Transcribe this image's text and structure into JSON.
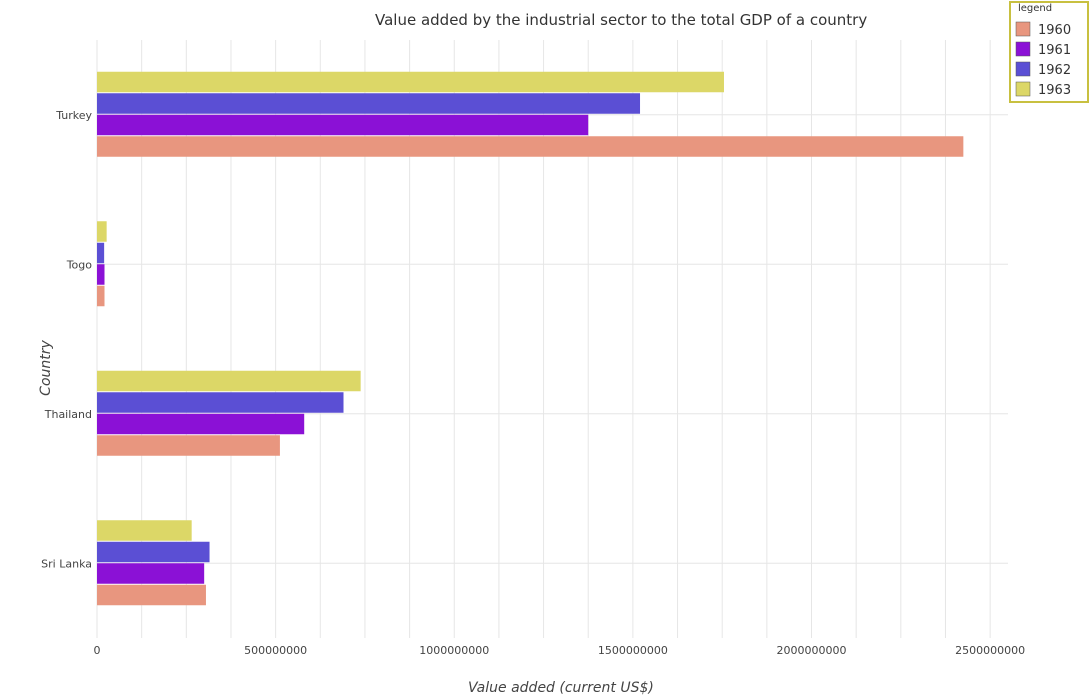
{
  "chart_data": {
    "type": "bar",
    "orientation": "horizontal",
    "title": "Value added by the industrial sector to the total GDP of a country",
    "xlabel": "Value added (current US$)",
    "ylabel": "Country",
    "categories": [
      "Sri Lanka",
      "Thailand",
      "Togo",
      "Turkey"
    ],
    "xlim": [
      0,
      2550000000
    ],
    "xticks": [
      0,
      500000000,
      1000000000,
      1500000000,
      2000000000,
      2500000000
    ],
    "xtick_labels": [
      "0",
      "500000000",
      "1000000000",
      "1500000000",
      "2000000000",
      "2500000000"
    ],
    "grid": true,
    "legend_title": "legend",
    "legend_position": "top-right",
    "series": [
      {
        "name": "1960",
        "color": "#e8967f",
        "values": [
          305000000,
          512000000,
          21000000,
          2425000000
        ]
      },
      {
        "name": "1961",
        "color": "#8b11d6",
        "values": [
          300000000,
          580000000,
          21000000,
          1375000000
        ]
      },
      {
        "name": "1962",
        "color": "#5b4fd4",
        "values": [
          315000000,
          690000000,
          20000000,
          1520000000
        ]
      },
      {
        "name": "1963",
        "color": "#dcd767",
        "values": [
          265000000,
          738000000,
          27000000,
          1755000000
        ]
      }
    ]
  }
}
